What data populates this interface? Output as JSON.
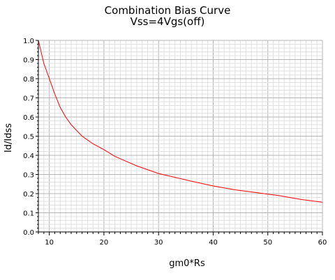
{
  "chart_data": {
    "type": "line",
    "title": "Combination Bias Curve",
    "subtitle": "Vss=4Vgs(off)",
    "xlabel": "gm0*Rs",
    "ylabel": "Id/Idss",
    "xlim": [
      8,
      60
    ],
    "ylim": [
      0,
      1.0
    ],
    "x_ticks": [
      "10",
      "20",
      "30",
      "40",
      "50",
      "60"
    ],
    "y_ticks": [
      "0.0",
      "0.1",
      "0.2",
      "0.3",
      "0.4",
      "0.5",
      "0.6",
      "0.7",
      "0.8",
      "0.9",
      "1.0"
    ],
    "grid": true,
    "colors": {
      "series": "#ff0000",
      "grid": "#c8c8c8",
      "axis": "#000000"
    },
    "series": [
      {
        "x": [
          8,
          9,
          10,
          11,
          12,
          13,
          14,
          15,
          16,
          18,
          20,
          22,
          24,
          26,
          28,
          30,
          33,
          36,
          40,
          44,
          48,
          52,
          56,
          60
        ],
        "y": [
          1.0,
          0.88,
          0.8,
          0.72,
          0.65,
          0.6,
          0.56,
          0.53,
          0.5,
          0.46,
          0.43,
          0.395,
          0.37,
          0.345,
          0.325,
          0.305,
          0.285,
          0.265,
          0.24,
          0.22,
          0.205,
          0.19,
          0.17,
          0.155
        ]
      }
    ]
  }
}
